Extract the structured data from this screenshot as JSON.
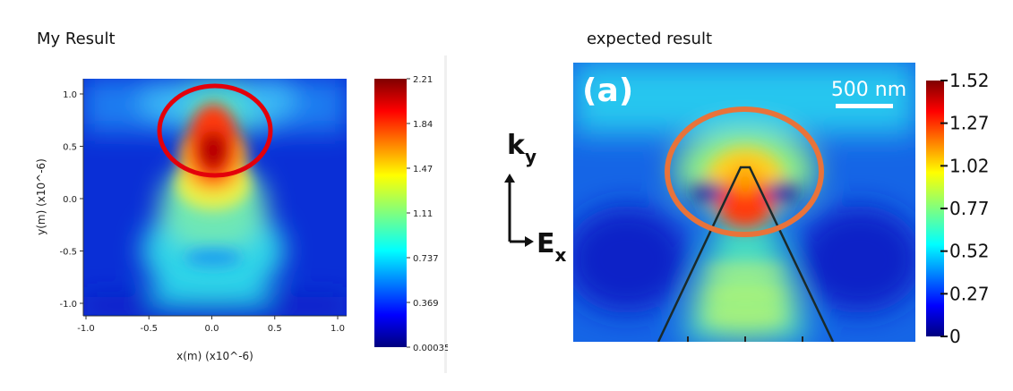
{
  "captions": {
    "left": "My Result",
    "right": "expected result"
  },
  "chart_data": [
    {
      "type": "heatmap",
      "title": "My Result",
      "xlabel": "x(m) (x10^-6)",
      "ylabel": "y(m) (x10^-6)",
      "xlim": [
        -1.0,
        1.0
      ],
      "ylim": [
        -1.1,
        1.1
      ],
      "x_ticks": [
        "-1.0",
        "-0.5",
        "0.0",
        "0.5",
        "1.0"
      ],
      "y_ticks": [
        "1.0",
        "0.5",
        "0.0",
        "-0.5",
        "-1.0"
      ],
      "colorbar": {
        "ticks": [
          "2.21",
          "1.84",
          "1.47",
          "1.11",
          "0.737",
          "0.369",
          "0.00035"
        ],
        "range": [
          0.00035,
          2.21
        ],
        "colormap": "jet"
      },
      "annotations": [
        "red ellipse around field maximum near (0.0, 0.5)"
      ],
      "circle_color": "#e3000b"
    },
    {
      "type": "heatmap",
      "title": "expected result",
      "panel_label": "(a)",
      "scalebar_label": "500 nm",
      "axis_labels": {
        "k": "k",
        "k_sub": "y",
        "E": "E",
        "E_sub": "x"
      },
      "colorbar": {
        "ticks": [
          "1.52",
          "1.27",
          "1.02",
          "0.77",
          "0.52",
          "0.27",
          "0"
        ],
        "range": [
          0,
          1.52
        ],
        "colormap": "jet"
      },
      "annotations": [
        "orange ellipse around the triangular tip"
      ],
      "circle_color": "#e8733a"
    }
  ]
}
